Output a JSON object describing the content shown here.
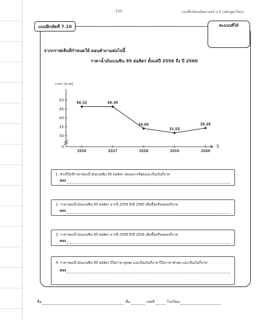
{
  "header": {
    "page_number": "150",
    "running_title": "แบบฝึกหัดคณิตศาสตร์ ป.5 (หลักสูตรใหม่)"
  },
  "exercise": {
    "tab_label": "แบบฝึกหัดที่ 7.10",
    "score_label": "คะแนนที่ได้",
    "instruction": "จากกราฟเส้นที่กำหนดให้ ตอบคำถามต่อไปนี้",
    "chart_title": "ราคาน้ำมันเบนซิน 95 ต่อลิตร ตั้งแต่ปี 2556 ถึง ปี 2560"
  },
  "chart_data": {
    "type": "line",
    "title": "ราคาน้ำมันเบนซิน 95 ต่อลิตร ตั้งแต่ปี 2556 ถึง ปี 2560",
    "ylabel": "ราคา (บาท)",
    "xlabel": "ปี",
    "x": [
      "2556",
      "2557",
      "2558",
      "2559",
      "2560"
    ],
    "values": [
      46.32,
      46.3,
      34.05,
      31.55,
      34.26
    ],
    "value_labels": [
      "46.32",
      "46.30",
      "34.05",
      "31.55",
      "34.26"
    ],
    "yticks": [
      "0",
      "30",
      "35",
      "40",
      "45",
      "50"
    ],
    "ytick_values": [
      30,
      35,
      40,
      45,
      50
    ],
    "ylim": [
      30,
      50
    ],
    "axis_break": true,
    "grid": false,
    "line_color": "#333333"
  },
  "questions": [
    {
      "text": "1. ช่วงปีใดที่ราคาของน้ำมันเบนซิน 95 ต่อลิตร ลดลงมากที่สุดและเป็นเงินกี่บาท",
      "answer_label": "ตอบ"
    },
    {
      "text": "2. ราคาของน้ำมันเบนซิน 95 ต่อลิตร จากปี 2559 ถึงปี 2560 เพิ่มขึ้นหรือลดลงกี่บาท",
      "answer_label": "ตอบ"
    },
    {
      "text": "3. ราคาของน้ำมันเบนซิน 95 ต่อลิตร จากปี 2558 ถึงปี 2559 เพิ่มขึ้นหรือลดลงกี่บาท",
      "answer_label": "ตอบ"
    },
    {
      "text": "4. ราคาของน้ำมันเบนซิน 95 ต่อลิตร ปีใดราคาสูงสุด และเป็นเงินกี่บาท ปีใดราคาต่ำสุด และเป็นเงินกี่บาท",
      "answer_label": "ตอบ"
    }
  ],
  "footer": {
    "name_label": "ชื่อ",
    "class_label": "ชั้น",
    "number_label": "เลขที่",
    "school_label": "โรงเรียน"
  }
}
